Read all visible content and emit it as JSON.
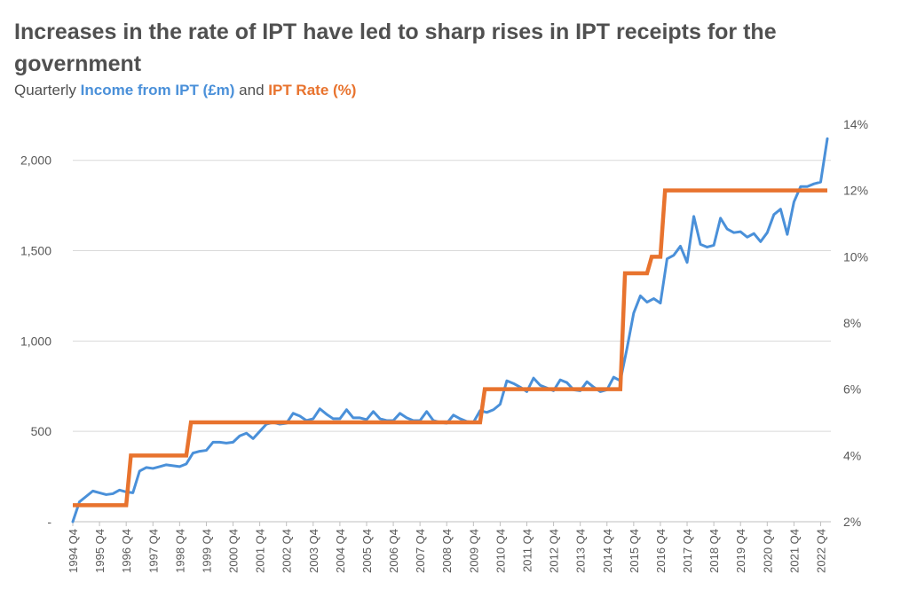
{
  "title": "Increases in the rate of IPT have led to sharp rises in IPT receipts for the government",
  "subtitle": {
    "prefix": "Quarterly ",
    "series1": "Income from IPT (£m)",
    "mid": " and ",
    "series2": "IPT Rate (%)"
  },
  "colors": {
    "income": "#4a90d9",
    "rate": "#e8732e",
    "grid": "#d9d9d9",
    "text": "#595959"
  },
  "chart_data": {
    "type": "line",
    "x_start": "1994 Q4",
    "x_labels": [
      "1994 Q4",
      "1995 Q4",
      "1996 Q4",
      "1997 Q4",
      "1998 Q4",
      "1999 Q4",
      "2000 Q4",
      "2001 Q4",
      "2002 Q4",
      "2003 Q4",
      "2004 Q4",
      "2005 Q4",
      "2006 Q4",
      "2007 Q4",
      "2008 Q4",
      "2009 Q4",
      "2010 Q4",
      "2011 Q4",
      "2012 Q4",
      "2013 Q4",
      "2014 Q4",
      "2015 Q4",
      "2016 Q4",
      "2017 Q4",
      "2018 Q4",
      "2019 Q4",
      "2020 Q4",
      "2021 Q4",
      "2022 Q4"
    ],
    "y_left": {
      "ticks": [
        0,
        500,
        1000,
        1500,
        2000
      ],
      "tick_labels": [
        "-",
        "500",
        "1,000",
        "1,500",
        "2,000"
      ],
      "range": [
        0,
        2200
      ]
    },
    "y_right": {
      "ticks": [
        2,
        4,
        6,
        8,
        10,
        12,
        14
      ],
      "tick_labels": [
        "2%",
        "4%",
        "6%",
        "8%",
        "10%",
        "12%",
        "14%"
      ],
      "range": [
        2,
        14
      ]
    },
    "grid": true,
    "series": [
      {
        "name": "Income from IPT (£m)",
        "axis": "left",
        "values": [
          0,
          110,
          140,
          170,
          160,
          150,
          155,
          175,
          165,
          160,
          280,
          300,
          295,
          305,
          315,
          310,
          305,
          320,
          380,
          390,
          395,
          440,
          440,
          435,
          440,
          475,
          490,
          460,
          500,
          540,
          550,
          540,
          545,
          600,
          585,
          560,
          570,
          625,
          595,
          570,
          570,
          620,
          575,
          575,
          565,
          610,
          570,
          560,
          560,
          600,
          575,
          560,
          560,
          610,
          560,
          550,
          545,
          590,
          570,
          555,
          550,
          615,
          605,
          620,
          650,
          780,
          765,
          745,
          720,
          795,
          755,
          740,
          725,
          785,
          770,
          730,
          725,
          775,
          745,
          720,
          730,
          800,
          780,
          960,
          1155,
          1250,
          1215,
          1235,
          1210,
          1455,
          1475,
          1525,
          1435,
          1690,
          1535,
          1520,
          1530,
          1680,
          1620,
          1600,
          1605,
          1575,
          1595,
          1550,
          1600,
          1700,
          1730,
          1590,
          1770,
          1855,
          1855,
          1870,
          1880,
          2120
        ]
      },
      {
        "name": "IPT Rate (%)",
        "axis": "right",
        "values": [
          2.5,
          2.5,
          2.5,
          2.5,
          2.5,
          2.5,
          2.5,
          2.5,
          2.5,
          4,
          4,
          4,
          4,
          4,
          4,
          4,
          4,
          4,
          5,
          5,
          5,
          5,
          5,
          5,
          5,
          5,
          5,
          5,
          5,
          5,
          5,
          5,
          5,
          5,
          5,
          5,
          5,
          5,
          5,
          5,
          5,
          5,
          5,
          5,
          5,
          5,
          5,
          5,
          5,
          5,
          5,
          5,
          5,
          5,
          5,
          5,
          5,
          5,
          5,
          5,
          5,
          5,
          6,
          6,
          6,
          6,
          6,
          6,
          6,
          6,
          6,
          6,
          6,
          6,
          6,
          6,
          6,
          6,
          6,
          6,
          6,
          6,
          6,
          9.5,
          9.5,
          9.5,
          9.5,
          10,
          10,
          12,
          12,
          12,
          12,
          12,
          12,
          12,
          12,
          12,
          12,
          12,
          12,
          12,
          12,
          12,
          12,
          12,
          12,
          12,
          12,
          12,
          12,
          12,
          12,
          12
        ]
      }
    ]
  }
}
